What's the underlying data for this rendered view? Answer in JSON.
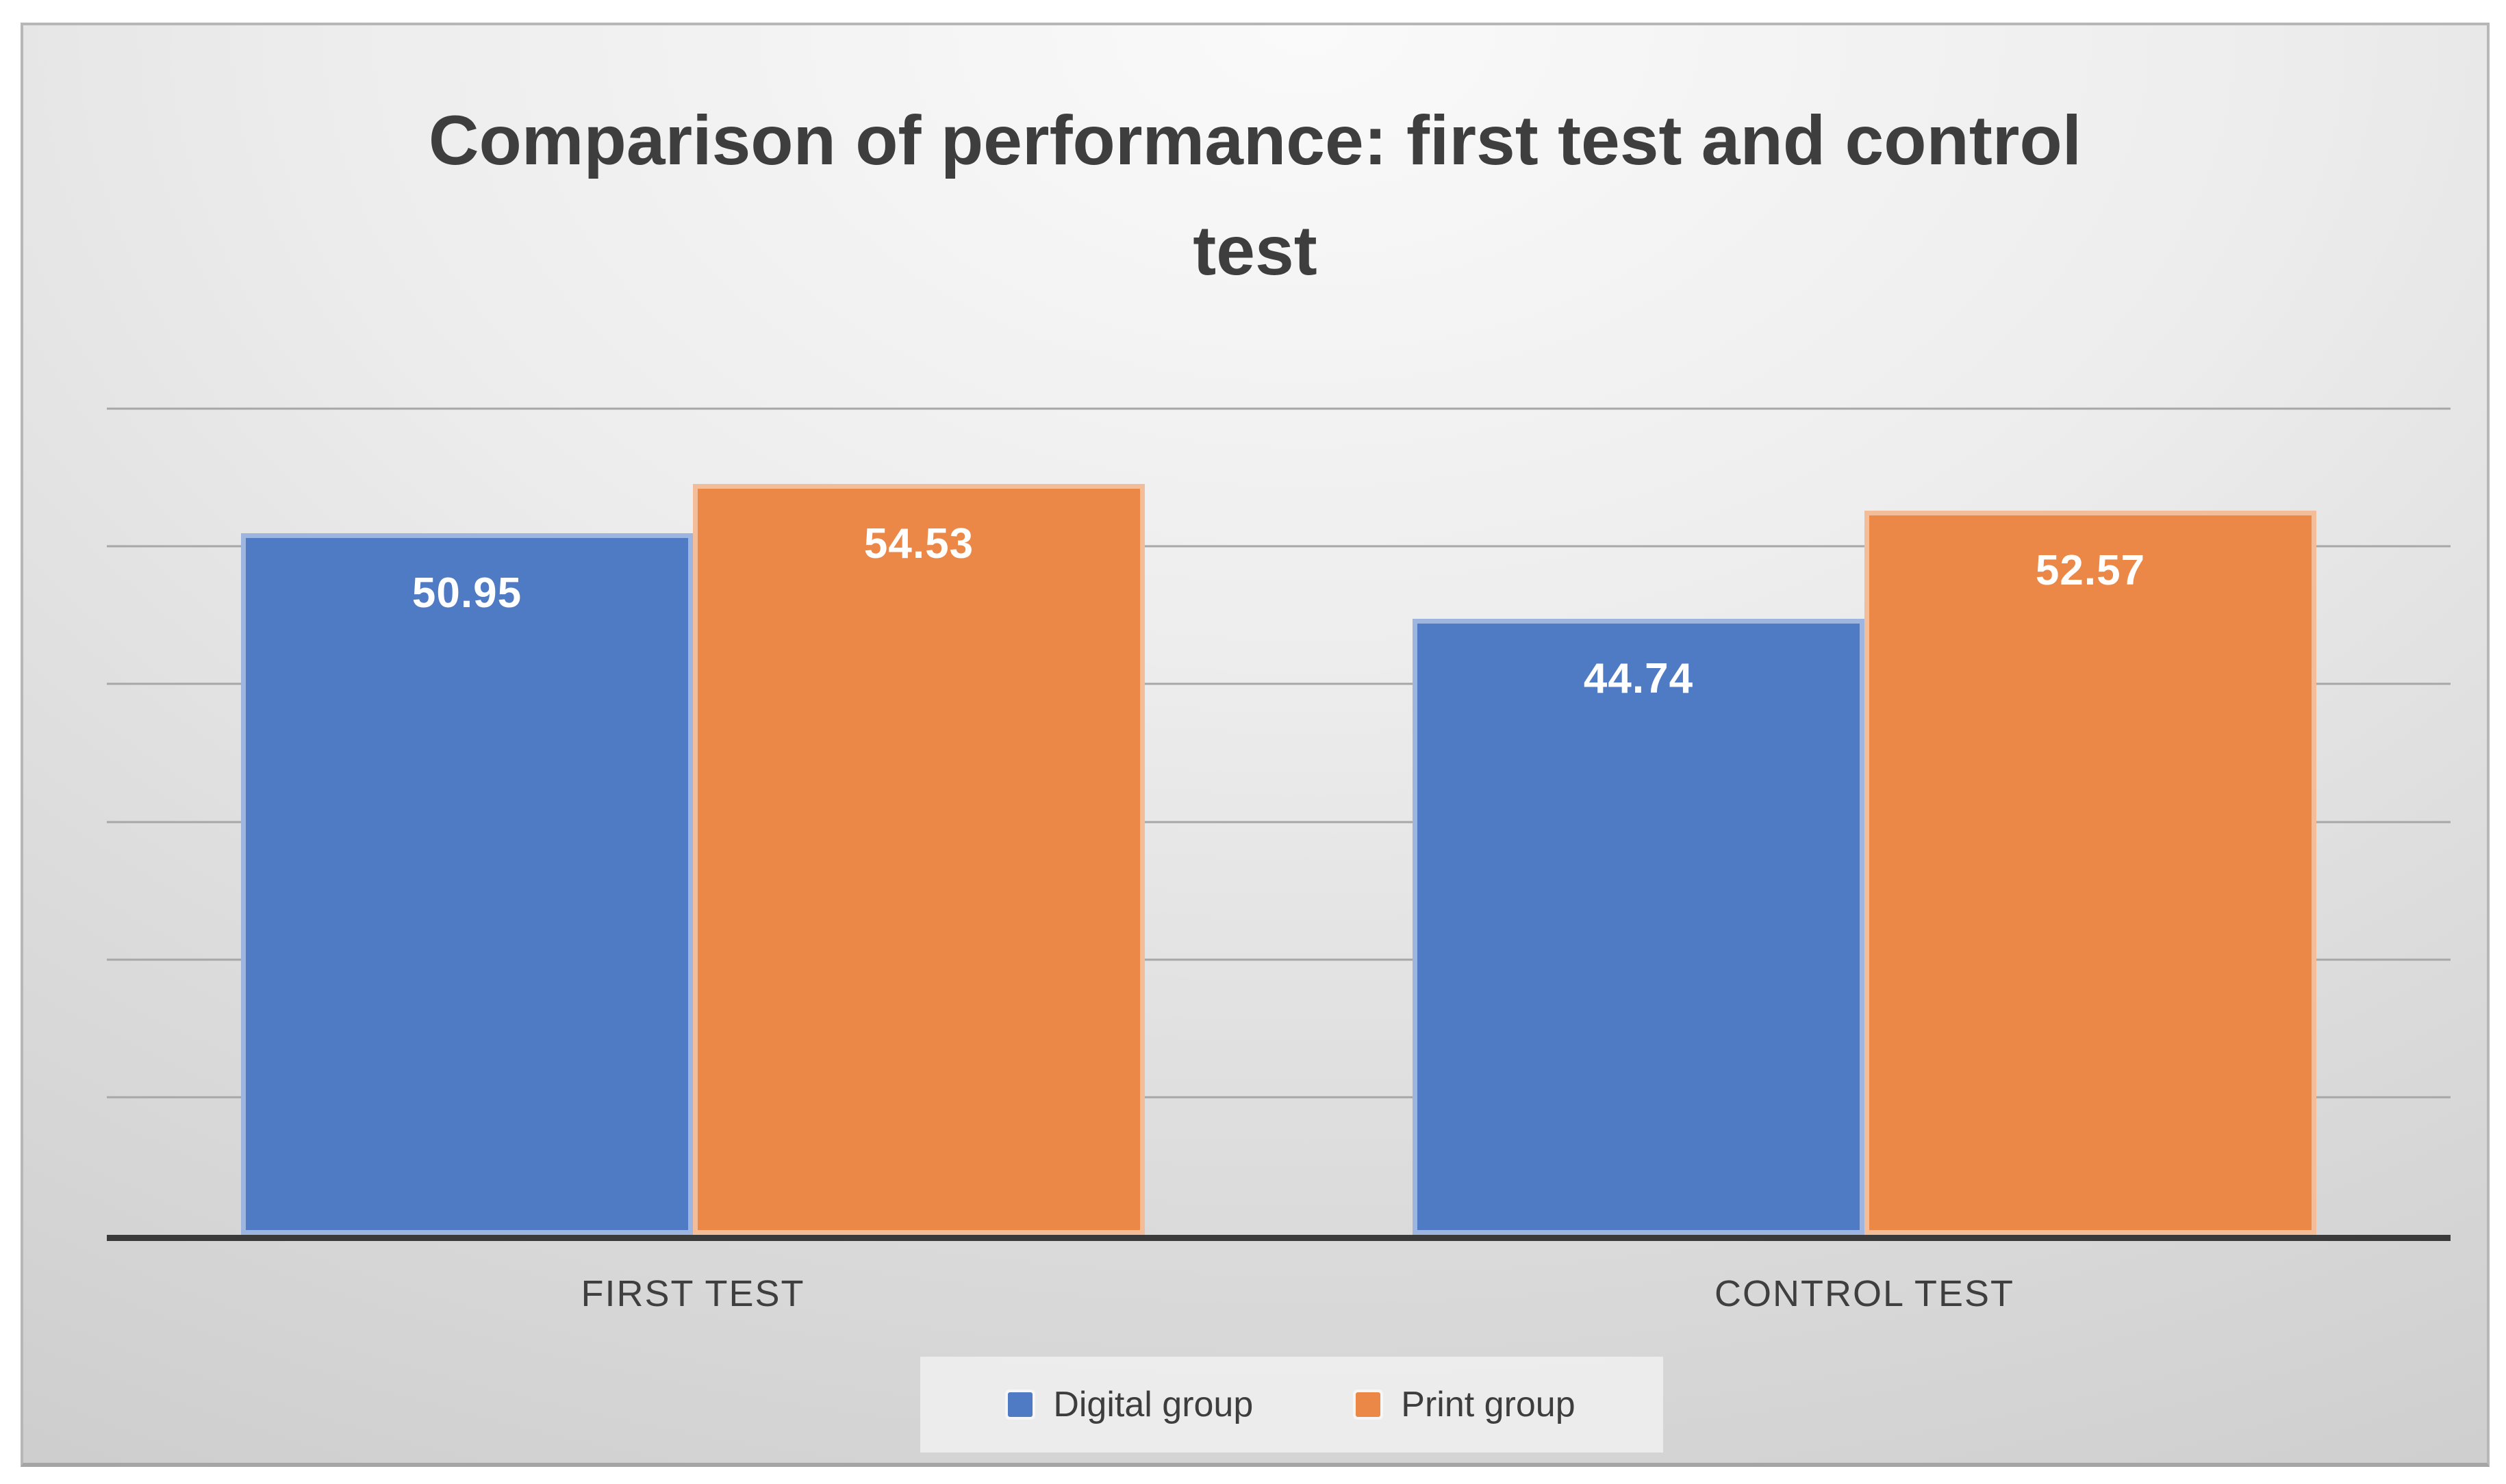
{
  "chart_data": {
    "type": "bar",
    "title": "Comparison of performance: first test and control test",
    "categories": [
      "FIRST TEST",
      "CONTROL TEST"
    ],
    "series": [
      {
        "name": "Digital group",
        "color": "#4F7BC5",
        "values": [
          50.95,
          44.74
        ]
      },
      {
        "name": "Print group",
        "color": "#EB8747",
        "values": [
          54.53,
          52.57
        ]
      }
    ],
    "ylim": [
      0,
      60
    ],
    "gridline_step": 10,
    "grid": true,
    "y_axis_tick_labels_visible": false,
    "data_labels_visible": true,
    "legend_position": "bottom",
    "colors": {
      "title_text": "#3e3e3e",
      "axis_line": "#3a3a3a",
      "gridline": "#a7a7a7",
      "data_label_text": "#ffffff"
    }
  }
}
